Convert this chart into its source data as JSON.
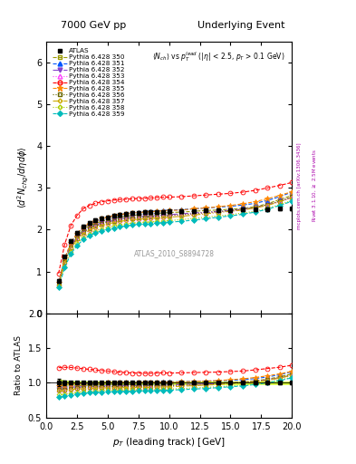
{
  "title_left": "7000 GeV pp",
  "title_right": "Underlying Event",
  "plot_title": "<N_{ch}> vs p_{T}^{lead} (|\\eta| < 2.5, p_{T} > 0.1 GeV)",
  "xlabel": "p_{T} (leading track) [GeV]",
  "ylabel": "\\langle d^{2} N_{chg}/d\\eta d\\phi \\rangle",
  "ylabel_ratio": "Ratio to ATLAS",
  "watermark": "ATLAS_2010_S8894728",
  "right_label": "mcplots.cern.ch [arXiv:1306.3436]",
  "right_label2": "Rivet 3.1.10, \\geq 2.5M events",
  "xlim": [
    0,
    20
  ],
  "ylim_main": [
    0,
    6.5
  ],
  "ylim_ratio": [
    0.5,
    2
  ],
  "pt_values": [
    1.0,
    1.5,
    2.0,
    2.5,
    3.0,
    3.5,
    4.0,
    4.5,
    5.0,
    5.5,
    6.0,
    6.5,
    7.0,
    7.5,
    8.0,
    8.5,
    9.0,
    9.5,
    10.0,
    11.0,
    12.0,
    13.0,
    14.0,
    15.0,
    16.0,
    17.0,
    18.0,
    19.0,
    20.0
  ],
  "atlas_values": [
    0.78,
    1.35,
    1.72,
    1.93,
    2.08,
    2.16,
    2.22,
    2.27,
    2.3,
    2.34,
    2.36,
    2.38,
    2.4,
    2.41,
    2.42,
    2.43,
    2.43,
    2.43,
    2.44,
    2.44,
    2.45,
    2.46,
    2.47,
    2.47,
    2.48,
    2.48,
    2.49,
    2.5,
    2.5
  ],
  "atlas_err": [
    0.04,
    0.04,
    0.04,
    0.04,
    0.04,
    0.04,
    0.04,
    0.04,
    0.04,
    0.04,
    0.04,
    0.04,
    0.04,
    0.04,
    0.04,
    0.04,
    0.04,
    0.04,
    0.04,
    0.04,
    0.04,
    0.04,
    0.04,
    0.04,
    0.04,
    0.04,
    0.04,
    0.04,
    0.04
  ],
  "tune350_values": [
    0.72,
    1.27,
    1.64,
    1.85,
    2.0,
    2.09,
    2.15,
    2.2,
    2.24,
    2.27,
    2.3,
    2.32,
    2.34,
    2.35,
    2.37,
    2.38,
    2.39,
    2.4,
    2.41,
    2.42,
    2.44,
    2.46,
    2.47,
    2.49,
    2.51,
    2.55,
    2.62,
    2.72,
    2.82
  ],
  "tune351_values": [
    0.74,
    1.3,
    1.68,
    1.9,
    2.05,
    2.14,
    2.21,
    2.26,
    2.3,
    2.33,
    2.36,
    2.38,
    2.4,
    2.42,
    2.43,
    2.44,
    2.45,
    2.46,
    2.47,
    2.48,
    2.5,
    2.52,
    2.54,
    2.56,
    2.59,
    2.63,
    2.7,
    2.79,
    2.9
  ],
  "tune352_values": [
    0.71,
    1.24,
    1.61,
    1.82,
    1.96,
    2.05,
    2.11,
    2.16,
    2.2,
    2.23,
    2.26,
    2.28,
    2.3,
    2.31,
    2.32,
    2.33,
    2.34,
    2.35,
    2.36,
    2.38,
    2.4,
    2.42,
    2.44,
    2.46,
    2.49,
    2.53,
    2.6,
    2.68,
    2.78
  ],
  "tune353_values": [
    0.7,
    1.22,
    1.58,
    1.79,
    1.93,
    2.02,
    2.08,
    2.13,
    2.17,
    2.2,
    2.22,
    2.24,
    2.26,
    2.28,
    2.29,
    2.3,
    2.31,
    2.32,
    2.33,
    2.35,
    2.37,
    2.4,
    2.42,
    2.45,
    2.48,
    2.52,
    2.59,
    2.67,
    2.77
  ],
  "tune354_values": [
    0.95,
    1.65,
    2.1,
    2.34,
    2.5,
    2.58,
    2.63,
    2.67,
    2.69,
    2.71,
    2.72,
    2.73,
    2.74,
    2.75,
    2.75,
    2.76,
    2.77,
    2.78,
    2.78,
    2.79,
    2.81,
    2.83,
    2.85,
    2.87,
    2.9,
    2.94,
    3.0,
    3.06,
    3.13
  ],
  "tune355_values": [
    0.74,
    1.31,
    1.69,
    1.91,
    2.06,
    2.15,
    2.21,
    2.26,
    2.3,
    2.33,
    2.36,
    2.38,
    2.39,
    2.41,
    2.42,
    2.43,
    2.44,
    2.45,
    2.46,
    2.47,
    2.5,
    2.52,
    2.55,
    2.58,
    2.62,
    2.67,
    2.74,
    2.82,
    2.91
  ],
  "tune356_values": [
    0.7,
    1.22,
    1.58,
    1.79,
    1.94,
    2.03,
    2.09,
    2.14,
    2.18,
    2.21,
    2.24,
    2.26,
    2.28,
    2.29,
    2.3,
    2.31,
    2.32,
    2.33,
    2.34,
    2.36,
    2.38,
    2.41,
    2.43,
    2.46,
    2.49,
    2.53,
    2.6,
    2.68,
    2.78
  ],
  "tune357_values": [
    0.69,
    1.2,
    1.55,
    1.76,
    1.9,
    1.99,
    2.05,
    2.1,
    2.14,
    2.17,
    2.2,
    2.22,
    2.24,
    2.25,
    2.26,
    2.27,
    2.28,
    2.29,
    2.3,
    2.32,
    2.35,
    2.38,
    2.41,
    2.44,
    2.47,
    2.52,
    2.58,
    2.67,
    2.77
  ],
  "tune358_values": [
    0.65,
    1.13,
    1.47,
    1.67,
    1.81,
    1.9,
    1.97,
    2.02,
    2.06,
    2.09,
    2.12,
    2.14,
    2.16,
    2.17,
    2.18,
    2.19,
    2.2,
    2.21,
    2.22,
    2.24,
    2.27,
    2.3,
    2.33,
    2.36,
    2.4,
    2.44,
    2.51,
    2.6,
    2.7
  ],
  "tune359_values": [
    0.62,
    1.09,
    1.42,
    1.62,
    1.76,
    1.85,
    1.92,
    1.97,
    2.01,
    2.04,
    2.07,
    2.09,
    2.11,
    2.13,
    2.14,
    2.15,
    2.16,
    2.17,
    2.18,
    2.2,
    2.23,
    2.26,
    2.3,
    2.33,
    2.37,
    2.42,
    2.49,
    2.58,
    2.68
  ],
  "tune_styles": [
    {
      "color": "#999900",
      "marker": "s",
      "ms": 3.0,
      "ls": "--",
      "mfc": "none",
      "label": "Pythia 6.428 350"
    },
    {
      "color": "#0055ff",
      "marker": "^",
      "ms": 3.5,
      "ls": "--",
      "mfc": "#0055ff",
      "label": "Pythia 6.428 351"
    },
    {
      "color": "#8844cc",
      "marker": "v",
      "ms": 3.5,
      "ls": "-.",
      "mfc": "#8844cc",
      "label": "Pythia 6.428 352"
    },
    {
      "color": "#ff44ff",
      "marker": "^",
      "ms": 3.5,
      "ls": ":",
      "mfc": "none",
      "label": "Pythia 6.428 353"
    },
    {
      "color": "#ff0000",
      "marker": "o",
      "ms": 3.5,
      "ls": "--",
      "mfc": "none",
      "label": "Pythia 6.428 354"
    },
    {
      "color": "#ff8800",
      "marker": "*",
      "ms": 4.5,
      "ls": "--",
      "mfc": "#ff8800",
      "label": "Pythia 6.428 355"
    },
    {
      "color": "#666600",
      "marker": "s",
      "ms": 3.0,
      "ls": ":",
      "mfc": "none",
      "label": "Pythia 6.428 356"
    },
    {
      "color": "#ccaa00",
      "marker": "D",
      "ms": 2.5,
      "ls": "-.",
      "mfc": "none",
      "label": "Pythia 6.428 357"
    },
    {
      "color": "#aacc00",
      "marker": "D",
      "ms": 2.5,
      "ls": ":",
      "mfc": "none",
      "label": "Pythia 6.428 358"
    },
    {
      "color": "#00bbbb",
      "marker": "D",
      "ms": 3.0,
      "ls": "--",
      "mfc": "#00bbbb",
      "label": "Pythia 6.428 359"
    }
  ]
}
